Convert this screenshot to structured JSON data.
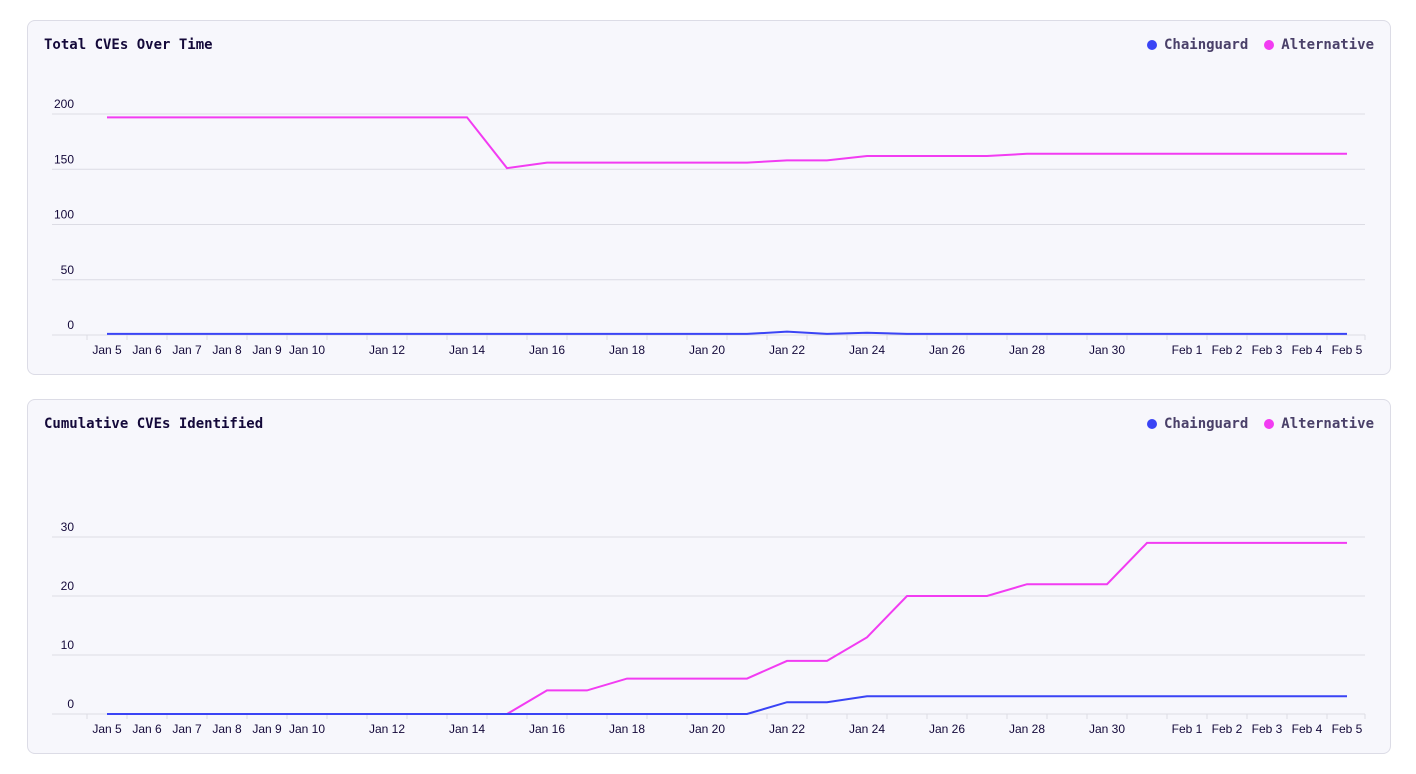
{
  "colors": {
    "Chainguard": "#3a44f5",
    "Alternative": "#f23cf2",
    "grid": "#dcdce4"
  },
  "chart_data": [
    {
      "type": "line",
      "title": "Total CVEs Over Time",
      "legend_position": "top-right",
      "grid": true,
      "x": [
        "Jan 5",
        "Jan 6",
        "Jan 7",
        "Jan 8",
        "Jan 9",
        "Jan 10",
        "Jan 11",
        "Jan 12",
        "Jan 13",
        "Jan 14",
        "Jan 15",
        "Jan 16",
        "Jan 17",
        "Jan 18",
        "Jan 19",
        "Jan 20",
        "Jan 21",
        "Jan 22",
        "Jan 23",
        "Jan 24",
        "Jan 25",
        "Jan 26",
        "Jan 27",
        "Jan 28",
        "Jan 29",
        "Jan 30",
        "Jan 31",
        "Feb 1",
        "Feb 2",
        "Feb 3",
        "Feb 4",
        "Feb 5"
      ],
      "x_tick_labels": [
        "Jan 5",
        "Jan 6",
        "Jan 7",
        "Jan 8",
        "Jan 9",
        "Jan 10",
        "",
        "Jan 12",
        "",
        "Jan 14",
        "",
        "Jan 16",
        "",
        "Jan 18",
        "",
        "Jan 20",
        "",
        "Jan 22",
        "",
        "Jan 24",
        "",
        "Jan 26",
        "",
        "Jan 28",
        "",
        "Jan 30",
        "",
        "Feb 1",
        "Feb 2",
        "Feb 3",
        "Feb 4",
        "Feb 5"
      ],
      "yticks": [
        0,
        50,
        100,
        150,
        200
      ],
      "ylim": [
        0,
        200
      ],
      "series": [
        {
          "name": "Chainguard",
          "values": [
            1,
            1,
            1,
            1,
            1,
            1,
            1,
            1,
            1,
            1,
            1,
            1,
            1,
            1,
            1,
            1,
            1,
            3,
            1,
            2,
            1,
            1,
            1,
            1,
            1,
            1,
            1,
            1,
            1,
            1,
            1,
            1
          ]
        },
        {
          "name": "Alternative",
          "values": [
            197,
            197,
            197,
            197,
            197,
            197,
            197,
            197,
            197,
            197,
            151,
            156,
            156,
            156,
            156,
            156,
            156,
            158,
            158,
            162,
            162,
            162,
            162,
            164,
            164,
            164,
            164,
            164,
            164,
            164,
            164,
            164
          ]
        }
      ]
    },
    {
      "type": "line",
      "title": "Cumulative CVEs Identified",
      "legend_position": "top-right",
      "grid": true,
      "x": [
        "Jan 5",
        "Jan 6",
        "Jan 7",
        "Jan 8",
        "Jan 9",
        "Jan 10",
        "Jan 11",
        "Jan 12",
        "Jan 13",
        "Jan 14",
        "Jan 15",
        "Jan 16",
        "Jan 17",
        "Jan 18",
        "Jan 19",
        "Jan 20",
        "Jan 21",
        "Jan 22",
        "Jan 23",
        "Jan 24",
        "Jan 25",
        "Jan 26",
        "Jan 27",
        "Jan 28",
        "Jan 29",
        "Jan 30",
        "Jan 31",
        "Feb 1",
        "Feb 2",
        "Feb 3",
        "Feb 4",
        "Feb 5"
      ],
      "x_tick_labels": [
        "Jan 5",
        "Jan 6",
        "Jan 7",
        "Jan 8",
        "Jan 9",
        "Jan 10",
        "",
        "Jan 12",
        "",
        "Jan 14",
        "",
        "Jan 16",
        "",
        "Jan 18",
        "",
        "Jan 20",
        "",
        "Jan 22",
        "",
        "Jan 24",
        "",
        "Jan 26",
        "",
        "Jan 28",
        "",
        "Jan 30",
        "",
        "Feb 1",
        "Feb 2",
        "Feb 3",
        "Feb 4",
        "Feb 5"
      ],
      "yticks": [
        0,
        10,
        20,
        30
      ],
      "ylim": [
        0,
        30
      ],
      "series": [
        {
          "name": "Chainguard",
          "values": [
            0,
            0,
            0,
            0,
            0,
            0,
            0,
            0,
            0,
            0,
            0,
            0,
            0,
            0,
            0,
            0,
            0,
            2,
            2,
            3,
            3,
            3,
            3,
            3,
            3,
            3,
            3,
            3,
            3,
            3,
            3,
            3
          ]
        },
        {
          "name": "Alternative",
          "values": [
            0,
            0,
            0,
            0,
            0,
            0,
            0,
            0,
            0,
            0,
            0,
            4,
            4,
            6,
            6,
            6,
            6,
            9,
            9,
            13,
            20,
            20,
            20,
            22,
            22,
            22,
            29,
            29,
            29,
            29,
            29,
            29
          ]
        }
      ]
    }
  ]
}
